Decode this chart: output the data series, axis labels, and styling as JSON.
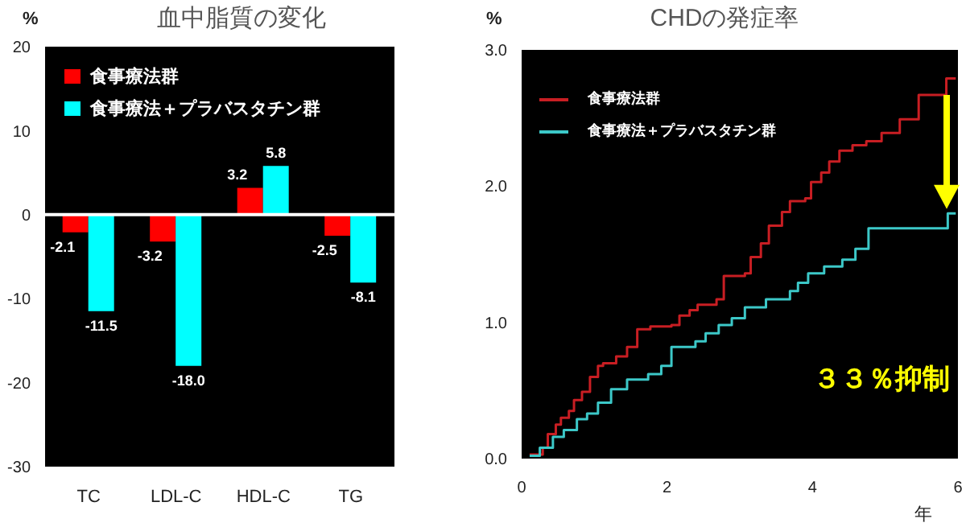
{
  "chart_data": [
    {
      "type": "bar",
      "title": "血中脂質の変化",
      "ylabel": "%",
      "categories": [
        "TC",
        "LDL-C",
        "HDL-C",
        "TG"
      ],
      "series": [
        {
          "name": "食事療法群",
          "color": "#ff0000",
          "values": [
            -2.1,
            -3.2,
            3.2,
            -2.5
          ],
          "value_labels": [
            "-2.1",
            "-3.2",
            "3.2",
            "-2.5"
          ]
        },
        {
          "name": "食事療法＋プラバスタチン群",
          "color": "#00ffff",
          "values": [
            -11.5,
            -18.0,
            5.8,
            -8.1
          ],
          "value_labels": [
            "-11.5",
            "-18.0",
            "5.8",
            "-8.1"
          ]
        }
      ],
      "ylim": [
        -30,
        20
      ],
      "yticks": [
        -30,
        -20,
        -10,
        0,
        10,
        20
      ],
      "legend": "top left",
      "grid": false,
      "ref_lines": [
        {
          "axis": "y",
          "value": 0,
          "color": "#ffffff"
        }
      ]
    },
    {
      "type": "step",
      "title": "CHDの発症率",
      "ylabel": "%",
      "xlabel": "年",
      "series": [
        {
          "name": "食事療法群",
          "color": "#c81e23",
          "x": [
            0.11,
            0.29,
            0.36,
            0.47,
            0.54,
            0.65,
            0.72,
            0.83,
            0.94,
            1.05,
            1.12,
            1.3,
            1.45,
            1.59,
            1.77,
            2.06,
            2.17,
            2.31,
            2.42,
            2.68,
            2.78,
            3.07,
            3.15,
            3.29,
            3.4,
            3.58,
            3.69,
            3.9,
            3.98,
            4.12,
            4.23,
            4.37,
            4.55,
            4.74,
            4.95,
            5.2,
            5.46,
            5.84,
            5.97
          ],
          "values": [
            0.03,
            0.08,
            0.18,
            0.25,
            0.3,
            0.35,
            0.43,
            0.49,
            0.6,
            0.68,
            0.7,
            0.75,
            0.82,
            0.95,
            0.97,
            0.98,
            1.05,
            1.09,
            1.13,
            1.17,
            1.34,
            1.36,
            1.48,
            1.58,
            1.71,
            1.81,
            1.89,
            1.91,
            2.03,
            2.1,
            2.18,
            2.26,
            2.3,
            2.33,
            2.39,
            2.49,
            2.67,
            2.79,
            2.79
          ]
        },
        {
          "name": "食事療法＋プラバスタチン群",
          "color": "#3cc8c8",
          "x": [
            0.11,
            0.25,
            0.43,
            0.58,
            0.76,
            0.9,
            1.05,
            1.23,
            1.45,
            1.74,
            1.92,
            2.06,
            2.39,
            2.53,
            2.71,
            2.89,
            3.07,
            3.36,
            3.69,
            3.8,
            3.94,
            4.16,
            4.41,
            4.59,
            4.77,
            5.86,
            5.97
          ],
          "values": [
            0.02,
            0.08,
            0.16,
            0.21,
            0.29,
            0.33,
            0.41,
            0.51,
            0.58,
            0.62,
            0.68,
            0.82,
            0.86,
            0.92,
            0.98,
            1.03,
            1.11,
            1.17,
            1.23,
            1.29,
            1.36,
            1.41,
            1.46,
            1.54,
            1.69,
            1.8,
            1.8
          ]
        }
      ],
      "xlim": [
        0,
        6
      ],
      "xticks": [
        0,
        2,
        4,
        6
      ],
      "ylim": [
        0,
        3
      ],
      "yticks": [
        {
          "value": 0,
          "label": "0.0"
        },
        {
          "value": 1,
          "label": "1.0"
        },
        {
          "value": 2,
          "label": "2.0"
        },
        {
          "value": 3,
          "label": "3.0"
        }
      ],
      "annotations": [
        "３３％抑制"
      ],
      "legend": "top left",
      "marker": "none",
      "line_style": "solid",
      "grid": false
    }
  ]
}
